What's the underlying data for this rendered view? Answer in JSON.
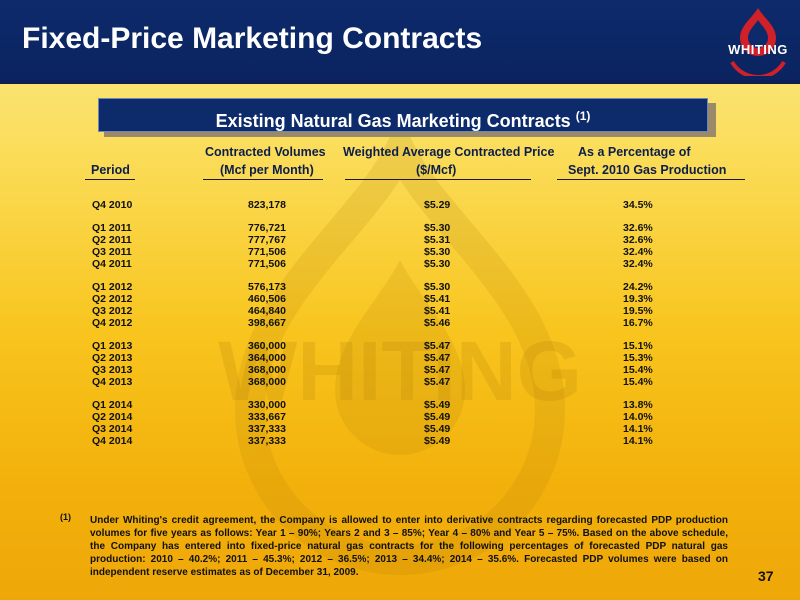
{
  "header": {
    "title": "Fixed-Price Marketing Contracts",
    "logo_text": "WHITING",
    "colors": {
      "navy": "#0d2a6b",
      "gold": "#f8c51e",
      "logo_red": "#d0202a"
    }
  },
  "watermark_text": "WHITING",
  "subtitle": {
    "text": "Existing Natural Gas Marketing Contracts",
    "note": "(1)"
  },
  "table": {
    "headers": {
      "period": "Period",
      "volumes_line1": "Contracted Volumes",
      "volumes_line2": "(Mcf per Month)",
      "price_line1": "Weighted Average Contracted Price",
      "price_line2": "($/Mcf)",
      "pct_line1": "As a Percentage of",
      "pct_line2": "Sept. 2010 Gas Production"
    },
    "rows": [
      {
        "period": "Q4 2010",
        "volume": "823,178",
        "price": "$5.29",
        "pct": "34.5%"
      },
      {
        "period": "Q1 2011",
        "volume": "776,721",
        "price": "$5.30",
        "pct": "32.6%"
      },
      {
        "period": "Q2 2011",
        "volume": "777,767",
        "price": "$5.31",
        "pct": "32.6%"
      },
      {
        "period": "Q3 2011",
        "volume": "771,506",
        "price": "$5.30",
        "pct": "32.4%"
      },
      {
        "period": "Q4 2011",
        "volume": "771,506",
        "price": "$5.30",
        "pct": "32.4%"
      },
      {
        "period": "Q1 2012",
        "volume": "576,173",
        "price": "$5.30",
        "pct": "24.2%"
      },
      {
        "period": "Q2 2012",
        "volume": "460,506",
        "price": "$5.41",
        "pct": "19.3%"
      },
      {
        "period": "Q3 2012",
        "volume": "464,840",
        "price": "$5.41",
        "pct": "19.5%"
      },
      {
        "period": "Q4 2012",
        "volume": "398,667",
        "price": "$5.46",
        "pct": "16.7%"
      },
      {
        "period": "Q1 2013",
        "volume": "360,000",
        "price": "$5.47",
        "pct": "15.1%"
      },
      {
        "period": "Q2 2013",
        "volume": "364,000",
        "price": "$5.47",
        "pct": "15.3%"
      },
      {
        "period": "Q3 2013",
        "volume": "368,000",
        "price": "$5.47",
        "pct": "15.4%"
      },
      {
        "period": "Q4 2013",
        "volume": "368,000",
        "price": "$5.47",
        "pct": "15.4%"
      },
      {
        "period": "Q1 2014",
        "volume": "330,000",
        "price": "$5.49",
        "pct": "13.8%"
      },
      {
        "period": "Q2 2014",
        "volume": "333,667",
        "price": "$5.49",
        "pct": "14.0%"
      },
      {
        "period": "Q3 2014",
        "volume": "337,333",
        "price": "$5.49",
        "pct": "14.1%"
      },
      {
        "period": "Q4 2014",
        "volume": "337,333",
        "price": "$5.49",
        "pct": "14.1%"
      }
    ]
  },
  "footnote": {
    "marker": "(1)",
    "text": "Under Whiting's credit agreement, the Company is allowed to enter into derivative contracts regarding forecasted PDP production volumes for five years as follows: Year 1 – 90%; Years 2 and 3 – 85%; Year 4 – 80% and Year 5 – 75%. Based on the above schedule, the Company has entered into fixed-price natural gas contracts for the following percentages of forecasted PDP natural gas production: 2010 – 40.2%; 2011 – 45.3%; 2012 – 36.5%; 2013 – 34.4%; 2014 – 35.6%.  Forecasted PDP volumes were based on independent reserve estimates as of December 31, 2009."
  },
  "page_number": "37"
}
